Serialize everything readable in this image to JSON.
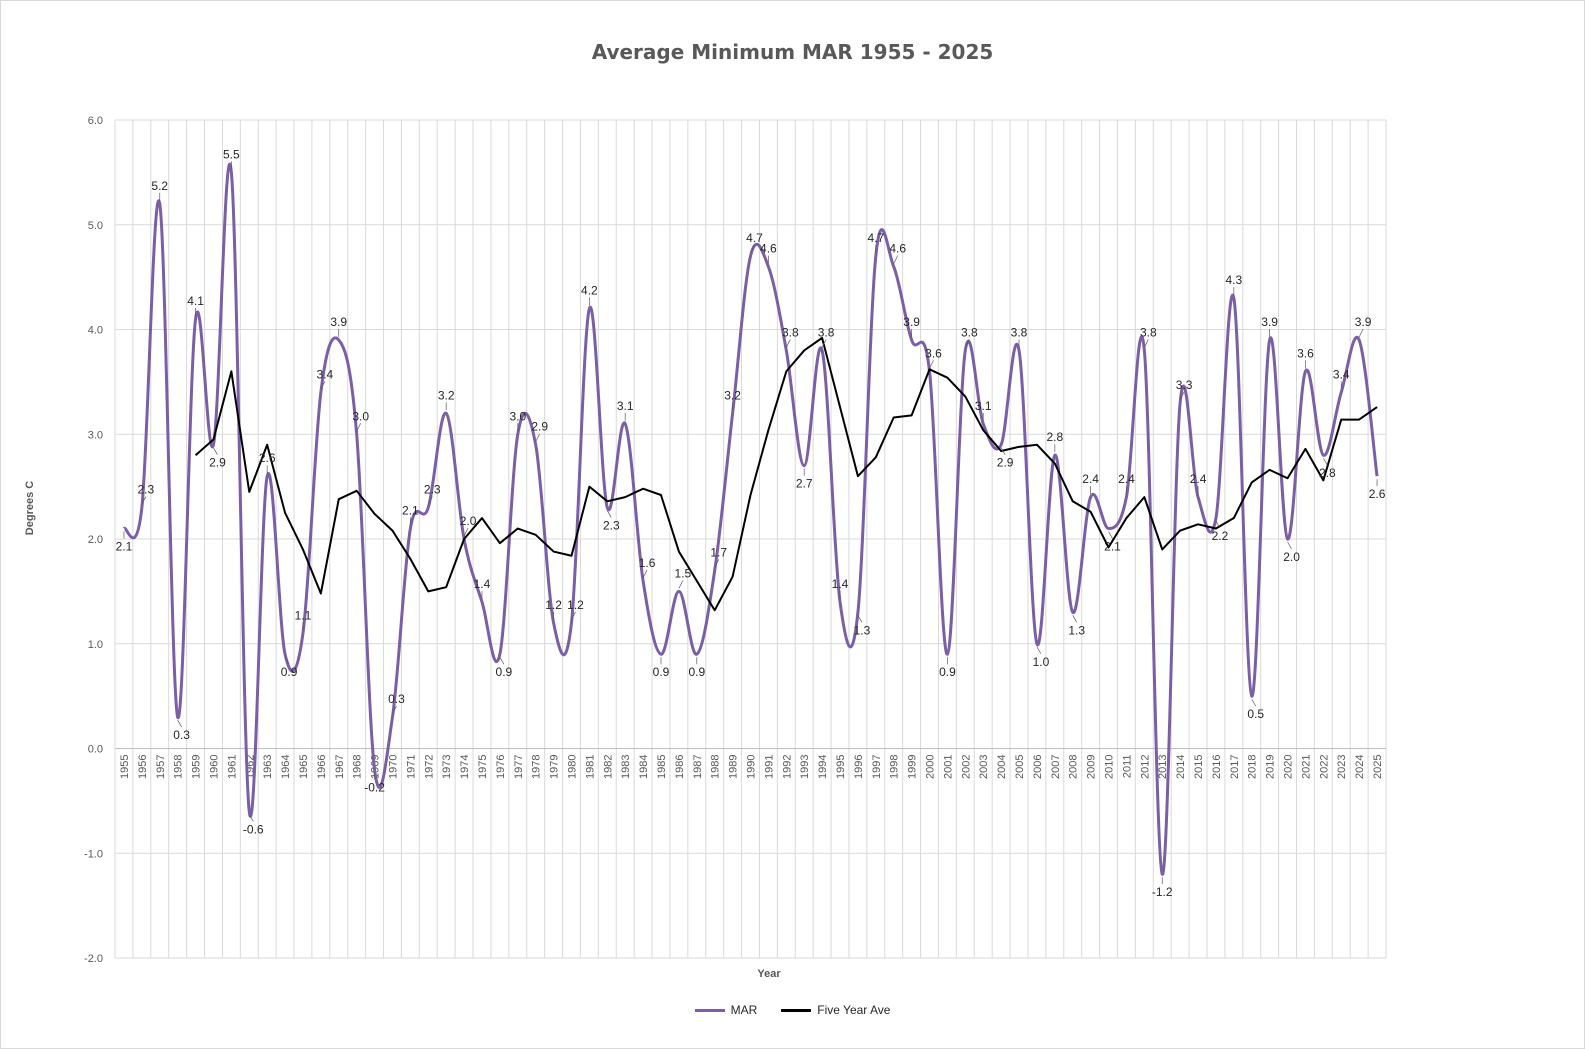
{
  "chart_data": {
    "type": "line",
    "title": "Average Minimum MAR 1955 - 2025",
    "xlabel": "Year",
    "ylabel": "Degrees C",
    "ylim": [
      -2.0,
      6.0
    ],
    "y_ticks": [
      "-2.0",
      "-1.0",
      "0.0",
      "1.0",
      "2.0",
      "3.0",
      "4.0",
      "5.0",
      "6.0"
    ],
    "x": [
      1955,
      1956,
      1957,
      1958,
      1959,
      1960,
      1961,
      1962,
      1963,
      1964,
      1965,
      1966,
      1967,
      1968,
      1969,
      1970,
      1971,
      1972,
      1973,
      1974,
      1975,
      1976,
      1977,
      1978,
      1979,
      1980,
      1981,
      1982,
      1983,
      1984,
      1985,
      1986,
      1987,
      1988,
      1989,
      1990,
      1991,
      1992,
      1993,
      1994,
      1995,
      1996,
      1997,
      1998,
      1999,
      2000,
      2001,
      2002,
      2003,
      2004,
      2005,
      2006,
      2007,
      2008,
      2009,
      2010,
      2011,
      2012,
      2013,
      2014,
      2015,
      2016,
      2017,
      2018,
      2019,
      2020,
      2021,
      2022,
      2023,
      2024,
      2025
    ],
    "grid": true,
    "legend_position": "bottom",
    "series": [
      {
        "name": "MAR",
        "color": "#7a5fa6",
        "smooth": true,
        "labels_shown": true,
        "values": [
          2.1,
          2.3,
          5.2,
          0.3,
          4.1,
          2.9,
          5.5,
          -0.6,
          2.6,
          0.9,
          1.1,
          3.4,
          3.9,
          3.0,
          -0.2,
          0.3,
          2.1,
          2.3,
          3.2,
          2.0,
          1.4,
          0.9,
          3.0,
          2.9,
          1.2,
          1.2,
          4.2,
          2.3,
          3.1,
          1.6,
          0.9,
          1.5,
          0.9,
          1.7,
          3.2,
          4.7,
          4.6,
          3.8,
          2.7,
          3.8,
          1.4,
          1.3,
          4.7,
          4.6,
          3.9,
          3.6,
          0.9,
          3.8,
          3.1,
          2.9,
          3.8,
          1.0,
          2.8,
          1.3,
          2.4,
          2.1,
          2.4,
          3.8,
          -1.2,
          3.3,
          2.4,
          2.2,
          4.3,
          0.5,
          3.9,
          2.0,
          3.6,
          2.8,
          3.4,
          3.9,
          2.6
        ]
      },
      {
        "name": "Five Year Ave",
        "color": "#000000",
        "smooth": false,
        "labels_shown": false,
        "values": [
          null,
          null,
          null,
          null,
          2.8,
          2.95,
          3.6,
          2.45,
          2.9,
          2.25,
          1.9,
          1.48,
          2.38,
          2.46,
          2.24,
          2.08,
          1.81,
          1.5,
          1.54,
          2.0,
          2.2,
          1.96,
          2.1,
          2.04,
          1.88,
          1.84,
          2.5,
          2.36,
          2.4,
          2.48,
          2.42,
          1.88,
          1.6,
          1.32,
          1.64,
          2.42,
          3.04,
          3.6,
          3.8,
          3.92,
          3.26,
          2.6,
          2.78,
          3.16,
          3.18,
          3.62,
          3.54,
          3.36,
          3.04,
          2.84,
          2.88,
          2.9,
          2.72,
          2.36,
          2.26,
          1.92,
          2.2,
          2.4,
          1.9,
          2.08,
          2.14,
          2.1,
          2.2,
          2.54,
          2.66,
          2.58,
          2.86,
          2.56,
          3.14,
          3.14,
          3.26
        ]
      }
    ]
  }
}
